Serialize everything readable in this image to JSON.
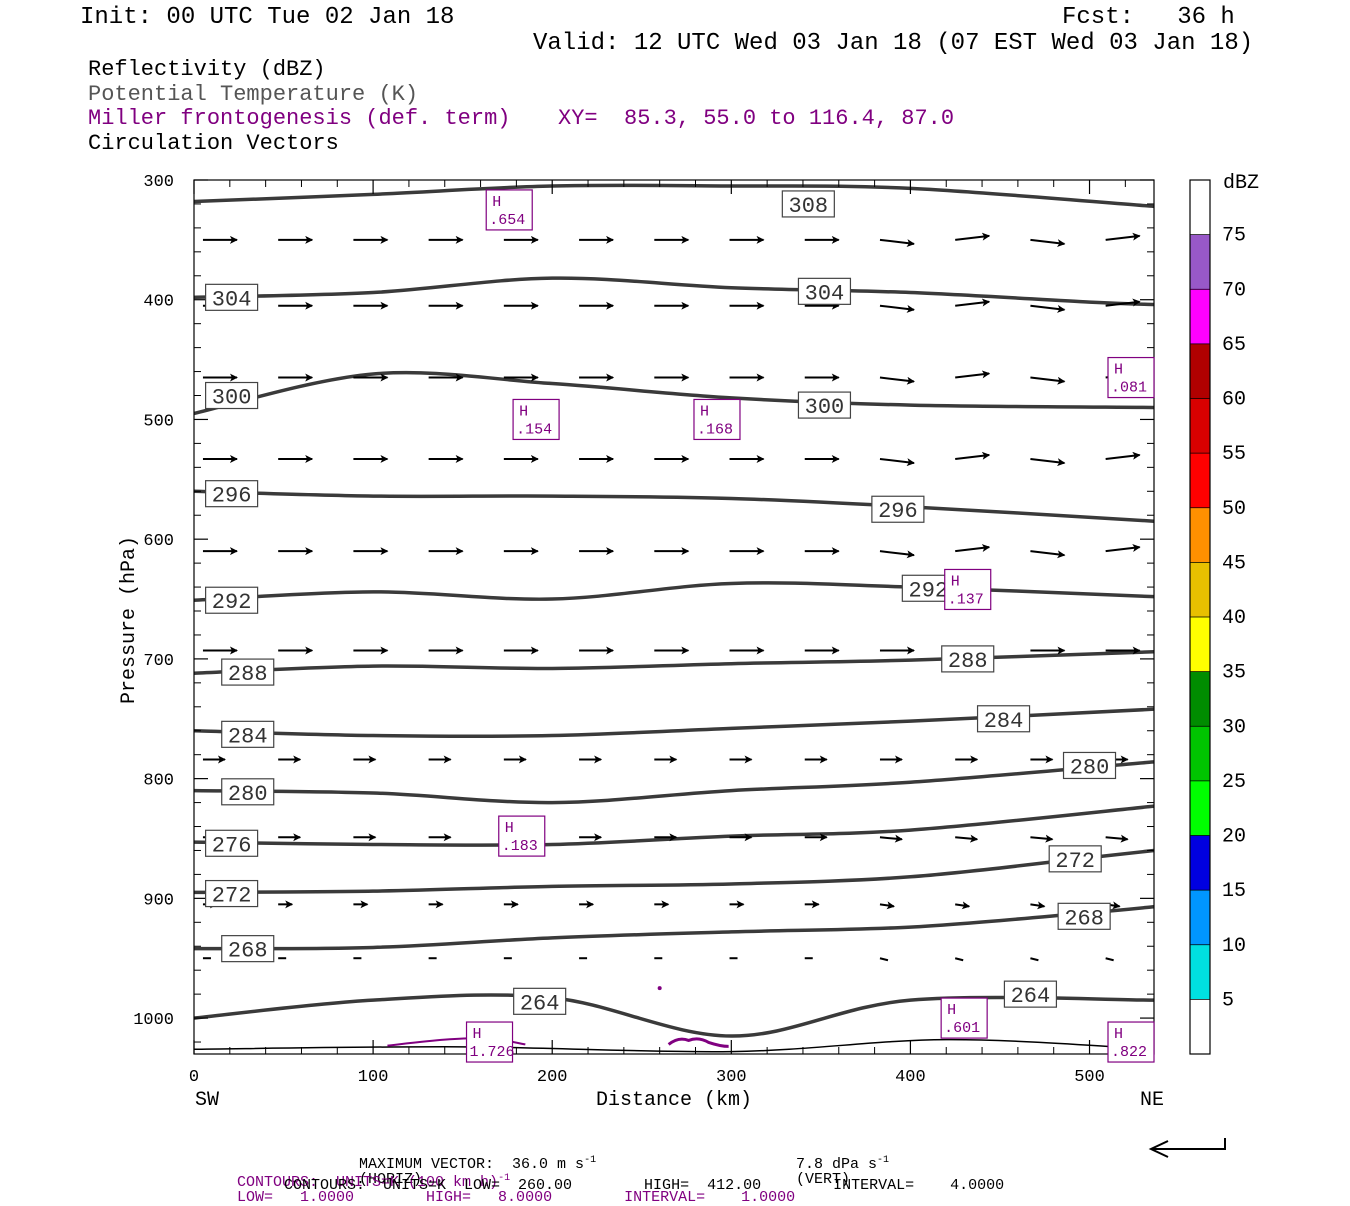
{
  "header": {
    "init": "Init: 00 UTC Tue 02 Jan 18",
    "fcst": "Fcst:   36 h",
    "valid": "Valid: 12 UTC Wed 03 Jan 18 (07 EST Wed 03 Jan 18)"
  },
  "fields": {
    "reflectivity": "Reflectivity (dBZ)",
    "theta": "Potential Temperature (K)",
    "frontogenesis": "Miller frontogenesis (def. term)",
    "xy": "XY=  85.3, 55.0 to 116.4, 87.0",
    "vectors": "Circulation Vectors"
  },
  "footer": {
    "max_vector_a": "MAXIMUM VECTOR:  36.0 m s",
    "max_vector_b": "(HORIZ)",
    "max_vector_c": "7.8 dPa s",
    "max_vector_d": "(VERT)",
    "sup": "-1",
    "fronto_a": "CONTOURS:  UNITS=K (100 km h)",
    "fronto_b": "LOW=   1.0000        HIGH=   8.0000        INTERVAL=    1.0000",
    "theta_contours": "CONTOURS:  UNITS=K  LOW=  260.00        HIGH=  412.00        INTERVAL=    4.0000"
  },
  "colors": {
    "theta": "#3a3a3a",
    "fronto": "#800080",
    "vector": "#000000"
  },
  "chart_data": {
    "type": "cross-section",
    "xlabel": "Distance (km)",
    "ylabel": "Pressure (hPa)",
    "x_left_label": "SW",
    "x_right_label": "NE",
    "xlim": [
      0,
      536
    ],
    "ylim": [
      1030,
      300
    ],
    "xticks": [
      0,
      100,
      200,
      300,
      400,
      500
    ],
    "yticks": [
      300,
      400,
      500,
      600,
      700,
      800,
      900,
      1000
    ],
    "theta_contours": [
      {
        "label": "308",
        "x": [
          0,
          100,
          200,
          300,
          400,
          536
        ],
        "p": [
          318,
          312,
          305,
          305,
          307,
          322
        ],
        "label_x": 343,
        "label_p": 320
      },
      {
        "label": "304",
        "x": [
          0,
          100,
          200,
          300,
          400,
          500,
          536
        ],
        "p": [
          398,
          394,
          382,
          390,
          394,
          402,
          404
        ],
        "label_x": 21,
        "label_p": 398,
        "label2_x": 352,
        "label2_p": 393
      },
      {
        "label": "300",
        "x": [
          0,
          100,
          200,
          300,
          400,
          536
        ],
        "p": [
          495,
          462,
          470,
          482,
          488,
          490
        ],
        "label_x": 21,
        "label_p": 480,
        "label2_x": 352,
        "label2_p": 488
      },
      {
        "label": "296",
        "x": [
          0,
          100,
          200,
          300,
          400,
          536
        ],
        "p": [
          560,
          564,
          564,
          566,
          573,
          585
        ],
        "label_x": 21,
        "label_p": 562,
        "label2_x": 393,
        "label2_p": 575
      },
      {
        "label": "292",
        "x": [
          0,
          100,
          200,
          300,
          400,
          536
        ],
        "p": [
          651,
          644,
          650,
          637,
          640,
          648
        ],
        "label_x": 21,
        "label_p": 651,
        "label2_x": 410,
        "label2_p": 641
      },
      {
        "label": "288",
        "x": [
          0,
          100,
          200,
          300,
          400,
          536
        ],
        "p": [
          712,
          706,
          708,
          704,
          701,
          694
        ],
        "label_x": 30,
        "label_p": 711,
        "label2_x": 432,
        "label2_p": 700
      },
      {
        "label": "284",
        "x": [
          0,
          100,
          200,
          300,
          400,
          536
        ],
        "p": [
          760,
          764,
          764,
          758,
          752,
          742
        ],
        "label_x": 30,
        "label_p": 763,
        "label2_x": 452,
        "label2_p": 750
      },
      {
        "label": "280",
        "x": [
          0,
          100,
          200,
          300,
          400,
          536
        ],
        "p": [
          810,
          812,
          820,
          810,
          803,
          786
        ],
        "label_x": 30,
        "label_p": 811,
        "label2_x": 500,
        "label2_p": 789
      },
      {
        "label": "276",
        "x": [
          0,
          100,
          200,
          300,
          400,
          536
        ],
        "p": [
          853,
          855,
          855,
          848,
          843,
          823
        ],
        "label_x": 21,
        "label_p": 854,
        "label2_x": 0,
        "label2_p": 0
      },
      {
        "label": "272",
        "x": [
          0,
          100,
          200,
          300,
          400,
          500,
          536
        ],
        "p": [
          895,
          894,
          890,
          888,
          882,
          866,
          860
        ],
        "label_x": 21,
        "label_p": 896,
        "label2_x": 492,
        "label2_p": 867
      },
      {
        "label": "268",
        "x": [
          0,
          100,
          200,
          300,
          400,
          500,
          536
        ],
        "p": [
          942,
          941,
          933,
          928,
          924,
          912,
          907
        ],
        "label_x": 30,
        "label_p": 942,
        "label2_x": 497,
        "label2_p": 915
      },
      {
        "label": "264",
        "x": [
          0,
          100,
          200,
          300,
          400,
          536
        ],
        "p": [
          1000,
          985,
          983,
          1015,
          985,
          985
        ],
        "label_x": 193,
        "label_p": 986,
        "label2_x": 467,
        "label2_p": 980
      }
    ],
    "fronto_maxima": [
      {
        "label": "H",
        "value": ".654",
        "x": 176,
        "p": 325
      },
      {
        "label": "H",
        "value": ".154",
        "x": 191,
        "p": 500
      },
      {
        "label": "H",
        "value": ".168",
        "x": 292,
        "p": 500
      },
      {
        "label": "H",
        "value": ".081",
        "x": 524,
        "p": 465
      },
      {
        "label": "H",
        "value": ".137",
        "x": 432,
        "p": 642
      },
      {
        "label": "H",
        "value": ".183",
        "x": 183,
        "p": 848
      },
      {
        "label": "H",
        "value": ".601",
        "x": 430,
        "p": 1000
      },
      {
        "label": "H",
        "value": "1.726",
        "x": 165,
        "p": 1020
      },
      {
        "label": "H",
        "value": ".822",
        "x": 526,
        "p": 1020
      }
    ],
    "vector_rows_p": [
      350,
      405,
      465,
      533,
      610,
      693,
      784,
      849,
      905,
      950
    ],
    "vector_x": [
      5,
      47,
      89,
      131,
      173,
      215,
      257,
      299,
      341,
      383,
      425,
      467,
      509
    ],
    "max_vector_horiz_ms": 36.0,
    "max_vector_vert_dpas": 7.8,
    "colorbar": {
      "title": "dBZ",
      "levels": [
        5,
        10,
        15,
        20,
        25,
        30,
        35,
        40,
        45,
        50,
        55,
        60,
        65,
        70,
        75
      ],
      "colors": [
        "#ffffff",
        "#00e0e0",
        "#0096ff",
        "#0000e0",
        "#00ff00",
        "#00c400",
        "#008c00",
        "#ffff00",
        "#e8c000",
        "#ff9000",
        "#ff0000",
        "#d80000",
        "#b00000",
        "#ff00ff",
        "#9858c8",
        "#ffffff"
      ]
    }
  }
}
